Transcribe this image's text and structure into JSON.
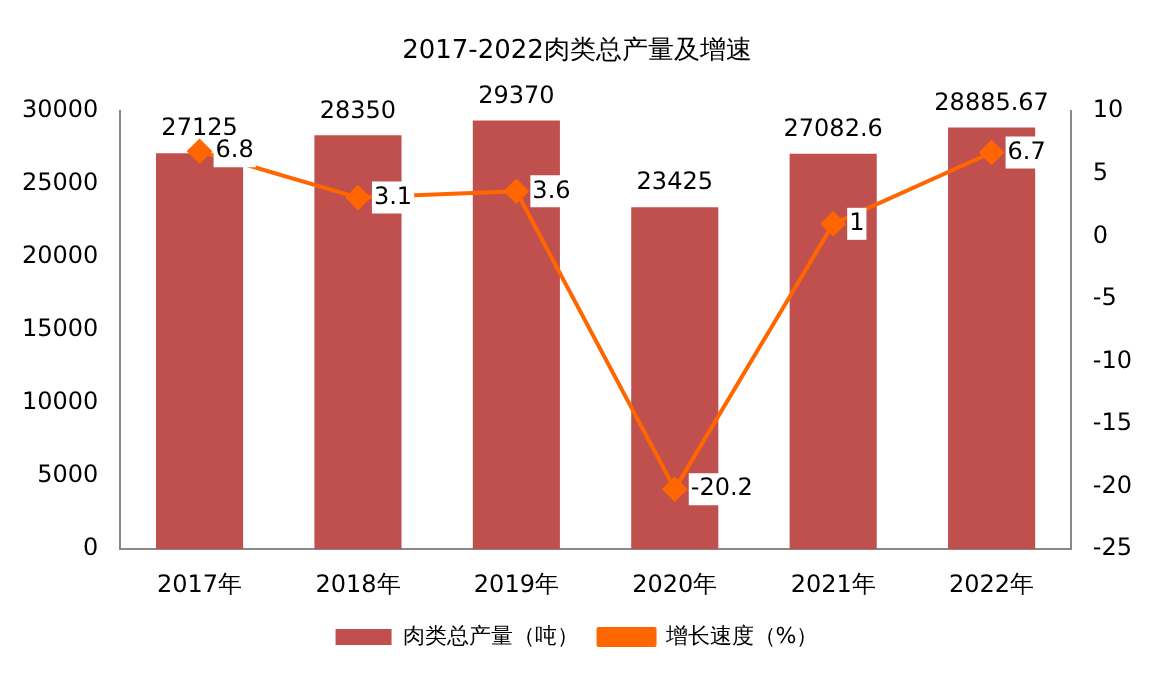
{
  "chart_data": {
    "type": "bar",
    "title": "2017-2022肉类总产量及增速",
    "categories": [
      "2017年",
      "2018年",
      "2019年",
      "2020年",
      "2021年",
      "2022年"
    ],
    "series": [
      {
        "name": "肉类总产量（吨）",
        "color": "#c0504d",
        "values": [
          27125,
          28350,
          29370,
          23425,
          27082.6,
          28885.67
        ]
      },
      {
        "name": "增长速度（%）",
        "type": "line",
        "axis": "y2",
        "color": "#ff6600",
        "values": [
          6.8,
          3.1,
          3.6,
          -20.2,
          1,
          6.7
        ]
      }
    ],
    "ylim": [
      0,
      30000
    ],
    "yticks": [
      0,
      5000,
      10000,
      15000,
      20000,
      25000,
      30000
    ],
    "y2lim": [
      -25,
      10
    ],
    "y2ticks": [
      -25,
      -20,
      -15,
      -10,
      -5,
      0,
      5,
      10
    ],
    "marker": "diamond",
    "line_style": "solid",
    "grid": false,
    "legend": "bottom",
    "data_labels": true
  }
}
